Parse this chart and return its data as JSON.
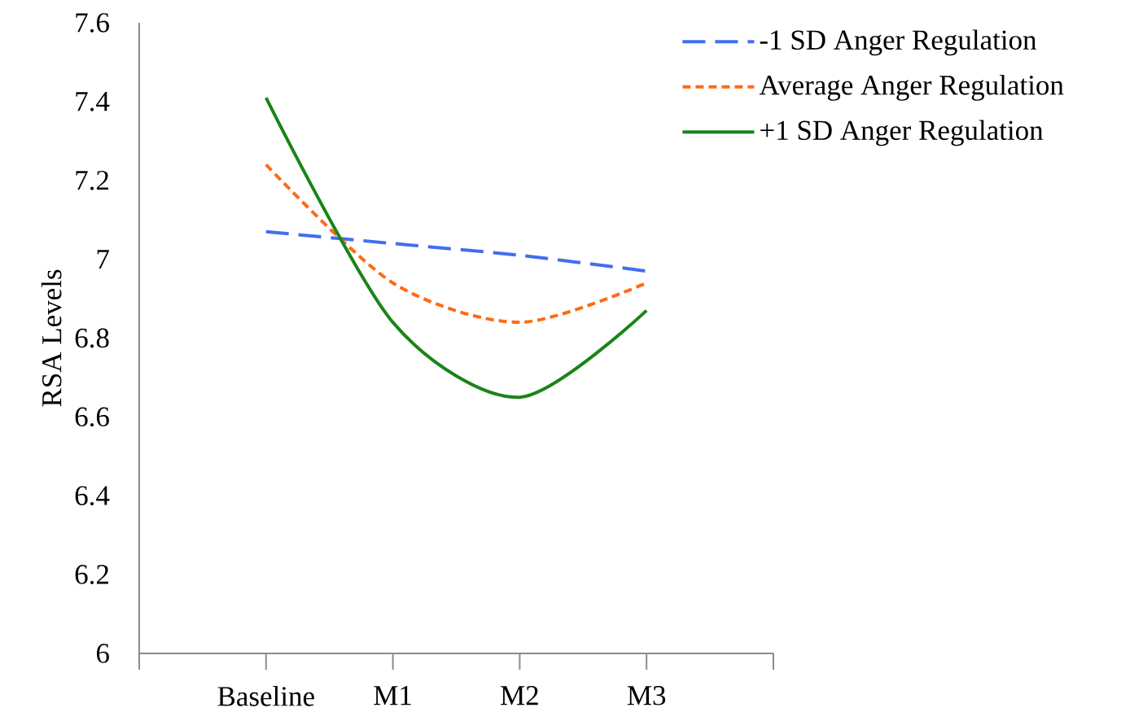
{
  "chart_data": {
    "type": "line",
    "ylabel": "RSA Levels",
    "categories": [
      "Baseline",
      "M1",
      "M2",
      "M3"
    ],
    "ylim": [
      6,
      7.6
    ],
    "yticks": [
      6,
      6.2,
      6.4,
      6.6,
      6.8,
      7,
      7.2,
      7.4,
      7.6
    ],
    "grid": false,
    "legend": "top right",
    "marker": "none",
    "series": [
      {
        "name": "-1 SD Anger Regulation",
        "color": "#3f6ff0",
        "line_style": "dashed",
        "values": [
          7.07,
          7.04,
          7.01,
          6.97
        ]
      },
      {
        "name": "Average Anger Regulation",
        "color": "#ff6a13",
        "line_style": "dotted",
        "values": [
          7.24,
          6.94,
          6.84,
          6.94
        ]
      },
      {
        "name": "+1 SD Anger Regulation",
        "color": "#1a841a",
        "line_style": "solid",
        "values": [
          7.41,
          6.84,
          6.65,
          6.87
        ]
      }
    ]
  }
}
